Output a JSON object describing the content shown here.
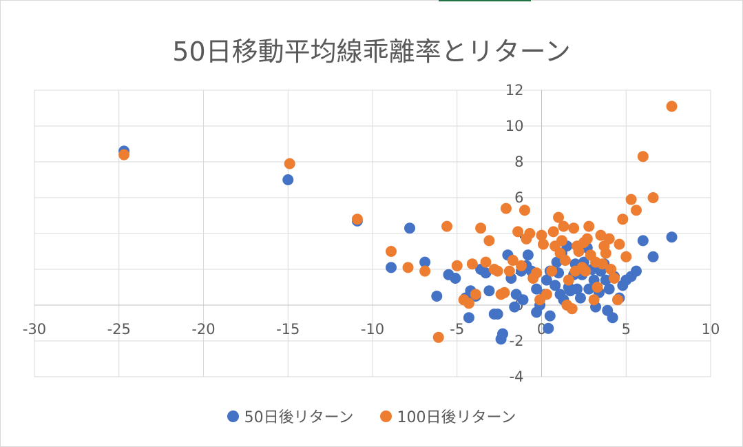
{
  "chart_data": {
    "type": "scatter",
    "title": "50日移動平均線乖離率とリターン",
    "xlabel": "",
    "ylabel": "",
    "xlim": [
      -30,
      10
    ],
    "ylim": [
      -4,
      12
    ],
    "x_ticks": [
      "-30",
      "-25",
      "-20",
      "-15",
      "-10",
      "-5",
      "0",
      "5",
      "10"
    ],
    "y_ticks": [
      "-4",
      "-2",
      "0",
      "2",
      "4",
      "6",
      "8",
      "10",
      "12"
    ],
    "grid": true,
    "legend_position": "bottom",
    "series": [
      {
        "name": "50日後リターン",
        "color": "#4472c4",
        "points": [
          [
            -24.7,
            8.6
          ],
          [
            -15.0,
            7.0
          ],
          [
            -10.9,
            4.7
          ],
          [
            -7.8,
            4.3
          ],
          [
            -8.9,
            2.1
          ],
          [
            -6.9,
            2.4
          ],
          [
            -5.5,
            1.7
          ],
          [
            -5.1,
            1.5
          ],
          [
            -6.2,
            0.5
          ],
          [
            -4.5,
            0.4
          ],
          [
            -4.2,
            0.8
          ],
          [
            -3.9,
            0.5
          ],
          [
            -4.3,
            -0.7
          ],
          [
            -3.6,
            2.0
          ],
          [
            -3.3,
            1.8
          ],
          [
            -3.1,
            0.8
          ],
          [
            -2.8,
            -0.5
          ],
          [
            -2.6,
            -0.5
          ],
          [
            -2.4,
            -1.9
          ],
          [
            -2.3,
            -1.6
          ],
          [
            -2.0,
            2.8
          ],
          [
            -1.8,
            1.5
          ],
          [
            -1.6,
            -0.1
          ],
          [
            -1.5,
            0.6
          ],
          [
            -1.2,
            1.9
          ],
          [
            -1.1,
            0.3
          ],
          [
            -0.9,
            2.2
          ],
          [
            -0.8,
            2.8
          ],
          [
            -0.6,
            1.9
          ],
          [
            -0.3,
            0.9
          ],
          [
            -0.3,
            -0.4
          ],
          [
            -0.1,
            0.0
          ],
          [
            0.2,
            0.6
          ],
          [
            0.3,
            1.4
          ],
          [
            0.4,
            -1.3
          ],
          [
            0.5,
            -0.6
          ],
          [
            0.5,
            1.9
          ],
          [
            0.8,
            1.1
          ],
          [
            0.9,
            2.4
          ],
          [
            1.0,
            1.8
          ],
          [
            1.1,
            0.6
          ],
          [
            1.2,
            2.9
          ],
          [
            1.3,
            0.3
          ],
          [
            1.5,
            3.3
          ],
          [
            1.6,
            1.0
          ],
          [
            1.7,
            0.8
          ],
          [
            1.9,
            1.7
          ],
          [
            2.0,
            2.3
          ],
          [
            2.1,
            0.9
          ],
          [
            2.3,
            0.4
          ],
          [
            2.4,
            1.7
          ],
          [
            2.5,
            2.4
          ],
          [
            2.7,
            3.2
          ],
          [
            2.8,
            0.9
          ],
          [
            3.0,
            2.0
          ],
          [
            3.1,
            1.4
          ],
          [
            3.2,
            -0.1
          ],
          [
            3.4,
            0.7
          ],
          [
            3.5,
            1.9
          ],
          [
            3.7,
            2.3
          ],
          [
            3.8,
            1.4
          ],
          [
            3.9,
            -0.3
          ],
          [
            4.0,
            0.9
          ],
          [
            4.2,
            -0.7
          ],
          [
            4.3,
            1.6
          ],
          [
            4.6,
            0.4
          ],
          [
            4.8,
            1.1
          ],
          [
            5.0,
            1.4
          ],
          [
            5.3,
            1.6
          ],
          [
            5.6,
            1.9
          ],
          [
            6.0,
            3.6
          ],
          [
            6.6,
            2.7
          ],
          [
            7.7,
            3.8
          ]
        ]
      },
      {
        "name": "100日後リターン",
        "color": "#ed7d31",
        "points": [
          [
            -24.7,
            8.4
          ],
          [
            -14.9,
            7.9
          ],
          [
            -10.9,
            4.8
          ],
          [
            -8.9,
            3.0
          ],
          [
            -7.9,
            2.1
          ],
          [
            -6.9,
            1.9
          ],
          [
            -6.1,
            -1.8
          ],
          [
            -5.6,
            4.4
          ],
          [
            -5.0,
            2.2
          ],
          [
            -4.6,
            0.3
          ],
          [
            -4.3,
            0.1
          ],
          [
            -4.1,
            2.3
          ],
          [
            -3.9,
            0.6
          ],
          [
            -3.6,
            4.3
          ],
          [
            -3.3,
            2.4
          ],
          [
            -3.1,
            3.6
          ],
          [
            -2.8,
            2.0
          ],
          [
            -2.6,
            1.9
          ],
          [
            -2.4,
            0.6
          ],
          [
            -2.2,
            0.7
          ],
          [
            -2.1,
            5.4
          ],
          [
            -1.9,
            1.9
          ],
          [
            -1.7,
            2.5
          ],
          [
            -1.4,
            4.1
          ],
          [
            -1.2,
            2.2
          ],
          [
            -1.0,
            5.3
          ],
          [
            -0.9,
            3.7
          ],
          [
            -0.7,
            4.0
          ],
          [
            -0.5,
            1.5
          ],
          [
            -0.3,
            1.8
          ],
          [
            -0.1,
            0.3
          ],
          [
            0.0,
            3.9
          ],
          [
            0.1,
            3.4
          ],
          [
            0.3,
            0.6
          ],
          [
            0.6,
            1.9
          ],
          [
            0.7,
            4.1
          ],
          [
            0.8,
            3.3
          ],
          [
            1.0,
            4.9
          ],
          [
            1.1,
            2.9
          ],
          [
            1.2,
            3.6
          ],
          [
            1.3,
            4.4
          ],
          [
            1.4,
            2.5
          ],
          [
            1.5,
            0.0
          ],
          [
            1.6,
            1.4
          ],
          [
            1.8,
            -0.2
          ],
          [
            1.9,
            4.3
          ],
          [
            2.0,
            1.9
          ],
          [
            2.1,
            3.3
          ],
          [
            2.2,
            3.0
          ],
          [
            2.4,
            2.1
          ],
          [
            2.5,
            3.5
          ],
          [
            2.6,
            1.9
          ],
          [
            2.7,
            3.7
          ],
          [
            2.8,
            4.4
          ],
          [
            2.9,
            2.8
          ],
          [
            3.1,
            0.3
          ],
          [
            3.2,
            2.4
          ],
          [
            3.3,
            1.0
          ],
          [
            3.5,
            3.9
          ],
          [
            3.6,
            2.3
          ],
          [
            3.7,
            3.3
          ],
          [
            3.8,
            2.9
          ],
          [
            4.0,
            3.7
          ],
          [
            4.1,
            2.0
          ],
          [
            4.3,
            1.5
          ],
          [
            4.5,
            0.3
          ],
          [
            4.6,
            3.4
          ],
          [
            4.8,
            4.8
          ],
          [
            5.0,
            2.7
          ],
          [
            5.3,
            5.9
          ],
          [
            5.6,
            5.3
          ],
          [
            6.0,
            8.3
          ],
          [
            6.6,
            6.0
          ],
          [
            7.7,
            11.1
          ]
        ]
      }
    ]
  }
}
